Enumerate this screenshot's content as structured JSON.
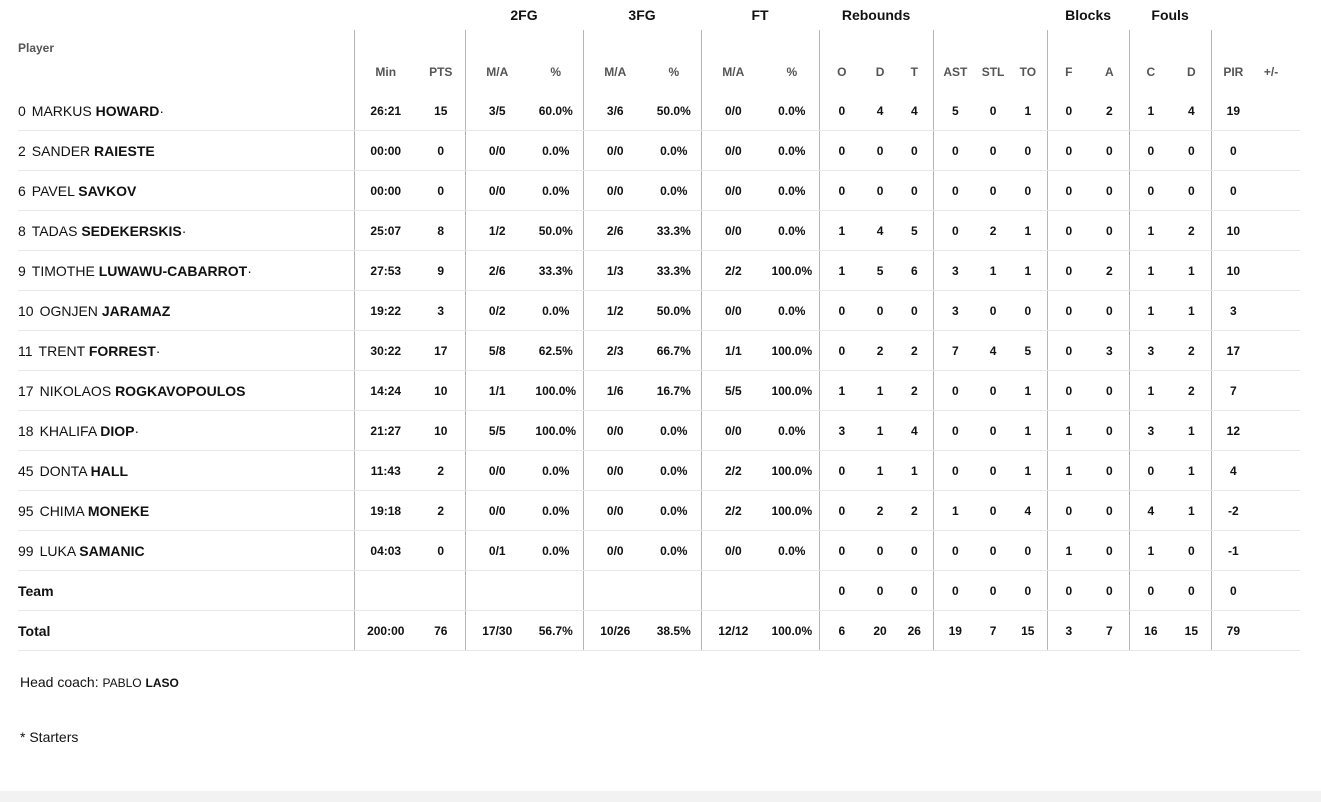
{
  "groups": {
    "fg2": "2FG",
    "fg3": "3FG",
    "ft": "FT",
    "reb": "Rebounds",
    "blocks": "Blocks",
    "fouls": "Fouls"
  },
  "headers": {
    "player": "Player",
    "min": "Min",
    "pts": "PTS",
    "ma": "M/A",
    "pct": "%",
    "o": "O",
    "d": "D",
    "t": "T",
    "ast": "AST",
    "stl": "STL",
    "to": "TO",
    "bf": "F",
    "ba": "A",
    "fc": "C",
    "fd": "D",
    "pir": "PIR",
    "pm": "+/-"
  },
  "players": [
    {
      "num": "0",
      "first": "MARKUS",
      "last": "HOWARD",
      "starter": "·",
      "min": "26:21",
      "pts": "15",
      "fg2": "3/5",
      "fg2p": "60.0%",
      "fg3": "3/6",
      "fg3p": "50.0%",
      "ft": "0/0",
      "ftp": "0.0%",
      "o": "0",
      "d": "4",
      "t": "4",
      "ast": "5",
      "stl": "0",
      "to": "1",
      "bf": "0",
      "ba": "2",
      "fc": "1",
      "fd": "4",
      "pir": "19",
      "pm": ""
    },
    {
      "num": "2",
      "first": "SANDER",
      "last": "RAIESTE",
      "starter": "",
      "min": "00:00",
      "pts": "0",
      "fg2": "0/0",
      "fg2p": "0.0%",
      "fg3": "0/0",
      "fg3p": "0.0%",
      "ft": "0/0",
      "ftp": "0.0%",
      "o": "0",
      "d": "0",
      "t": "0",
      "ast": "0",
      "stl": "0",
      "to": "0",
      "bf": "0",
      "ba": "0",
      "fc": "0",
      "fd": "0",
      "pir": "0",
      "pm": ""
    },
    {
      "num": "6",
      "first": "PAVEL",
      "last": "SAVKOV",
      "starter": "",
      "min": "00:00",
      "pts": "0",
      "fg2": "0/0",
      "fg2p": "0.0%",
      "fg3": "0/0",
      "fg3p": "0.0%",
      "ft": "0/0",
      "ftp": "0.0%",
      "o": "0",
      "d": "0",
      "t": "0",
      "ast": "0",
      "stl": "0",
      "to": "0",
      "bf": "0",
      "ba": "0",
      "fc": "0",
      "fd": "0",
      "pir": "0",
      "pm": ""
    },
    {
      "num": "8",
      "first": "TADAS",
      "last": "SEDEKERSKIS",
      "starter": "·",
      "min": "25:07",
      "pts": "8",
      "fg2": "1/2",
      "fg2p": "50.0%",
      "fg3": "2/6",
      "fg3p": "33.3%",
      "ft": "0/0",
      "ftp": "0.0%",
      "o": "1",
      "d": "4",
      "t": "5",
      "ast": "0",
      "stl": "2",
      "to": "1",
      "bf": "0",
      "ba": "0",
      "fc": "1",
      "fd": "2",
      "pir": "10",
      "pm": ""
    },
    {
      "num": "9",
      "first": "TIMOTHE",
      "last": "LUWAWU-CABARROT",
      "starter": "·",
      "min": "27:53",
      "pts": "9",
      "fg2": "2/6",
      "fg2p": "33.3%",
      "fg3": "1/3",
      "fg3p": "33.3%",
      "ft": "2/2",
      "ftp": "100.0%",
      "o": "1",
      "d": "5",
      "t": "6",
      "ast": "3",
      "stl": "1",
      "to": "1",
      "bf": "0",
      "ba": "2",
      "fc": "1",
      "fd": "1",
      "pir": "10",
      "pm": ""
    },
    {
      "num": "10",
      "first": "OGNJEN",
      "last": "JARAMAZ",
      "starter": "",
      "min": "19:22",
      "pts": "3",
      "fg2": "0/2",
      "fg2p": "0.0%",
      "fg3": "1/2",
      "fg3p": "50.0%",
      "ft": "0/0",
      "ftp": "0.0%",
      "o": "0",
      "d": "0",
      "t": "0",
      "ast": "3",
      "stl": "0",
      "to": "0",
      "bf": "0",
      "ba": "0",
      "fc": "1",
      "fd": "1",
      "pir": "3",
      "pm": ""
    },
    {
      "num": "11",
      "first": "TRENT",
      "last": "FORREST",
      "starter": "·",
      "min": "30:22",
      "pts": "17",
      "fg2": "5/8",
      "fg2p": "62.5%",
      "fg3": "2/3",
      "fg3p": "66.7%",
      "ft": "1/1",
      "ftp": "100.0%",
      "o": "0",
      "d": "2",
      "t": "2",
      "ast": "7",
      "stl": "4",
      "to": "5",
      "bf": "0",
      "ba": "3",
      "fc": "3",
      "fd": "2",
      "pir": "17",
      "pm": ""
    },
    {
      "num": "17",
      "first": "NIKOLAOS",
      "last": "ROGKAVOPOULOS",
      "starter": "",
      "min": "14:24",
      "pts": "10",
      "fg2": "1/1",
      "fg2p": "100.0%",
      "fg3": "1/6",
      "fg3p": "16.7%",
      "ft": "5/5",
      "ftp": "100.0%",
      "o": "1",
      "d": "1",
      "t": "2",
      "ast": "0",
      "stl": "0",
      "to": "1",
      "bf": "0",
      "ba": "0",
      "fc": "1",
      "fd": "2",
      "pir": "7",
      "pm": ""
    },
    {
      "num": "18",
      "first": "KHALIFA",
      "last": "DIOP",
      "starter": "·",
      "min": "21:27",
      "pts": "10",
      "fg2": "5/5",
      "fg2p": "100.0%",
      "fg3": "0/0",
      "fg3p": "0.0%",
      "ft": "0/0",
      "ftp": "0.0%",
      "o": "3",
      "d": "1",
      "t": "4",
      "ast": "0",
      "stl": "0",
      "to": "1",
      "bf": "1",
      "ba": "0",
      "fc": "3",
      "fd": "1",
      "pir": "12",
      "pm": ""
    },
    {
      "num": "45",
      "first": "DONTA",
      "last": "HALL",
      "starter": "",
      "min": "11:43",
      "pts": "2",
      "fg2": "0/0",
      "fg2p": "0.0%",
      "fg3": "0/0",
      "fg3p": "0.0%",
      "ft": "2/2",
      "ftp": "100.0%",
      "o": "0",
      "d": "1",
      "t": "1",
      "ast": "0",
      "stl": "0",
      "to": "1",
      "bf": "1",
      "ba": "0",
      "fc": "0",
      "fd": "1",
      "pir": "4",
      "pm": ""
    },
    {
      "num": "95",
      "first": "CHIMA",
      "last": "MONEKE",
      "starter": "",
      "min": "19:18",
      "pts": "2",
      "fg2": "0/0",
      "fg2p": "0.0%",
      "fg3": "0/0",
      "fg3p": "0.0%",
      "ft": "2/2",
      "ftp": "100.0%",
      "o": "0",
      "d": "2",
      "t": "2",
      "ast": "1",
      "stl": "0",
      "to": "4",
      "bf": "0",
      "ba": "0",
      "fc": "4",
      "fd": "1",
      "pir": "-2",
      "pm": ""
    },
    {
      "num": "99",
      "first": "LUKA",
      "last": "SAMANIC",
      "starter": "",
      "min": "04:03",
      "pts": "0",
      "fg2": "0/1",
      "fg2p": "0.0%",
      "fg3": "0/0",
      "fg3p": "0.0%",
      "ft": "0/0",
      "ftp": "0.0%",
      "o": "0",
      "d": "0",
      "t": "0",
      "ast": "0",
      "stl": "0",
      "to": "0",
      "bf": "1",
      "ba": "0",
      "fc": "1",
      "fd": "0",
      "pir": "-1",
      "pm": ""
    }
  ],
  "team_row": {
    "label": "Team",
    "min": "",
    "pts": "",
    "fg2": "",
    "fg2p": "",
    "fg3": "",
    "fg3p": "",
    "ft": "",
    "ftp": "",
    "o": "0",
    "d": "0",
    "t": "0",
    "ast": "0",
    "stl": "0",
    "to": "0",
    "bf": "0",
    "ba": "0",
    "fc": "0",
    "fd": "0",
    "pir": "0",
    "pm": ""
  },
  "total_row": {
    "label": "Total",
    "min": "200:00",
    "pts": "76",
    "fg2": "17/30",
    "fg2p": "56.7%",
    "fg3": "10/26",
    "fg3p": "38.5%",
    "ft": "12/12",
    "ftp": "100.0%",
    "o": "6",
    "d": "20",
    "t": "26",
    "ast": "19",
    "stl": "7",
    "to": "15",
    "bf": "3",
    "ba": "7",
    "fc": "16",
    "fd": "15",
    "pir": "79",
    "pm": ""
  },
  "coach": {
    "label": "Head coach:",
    "first": "PABLO",
    "last": "LASO"
  },
  "starters_note": "* Starters"
}
